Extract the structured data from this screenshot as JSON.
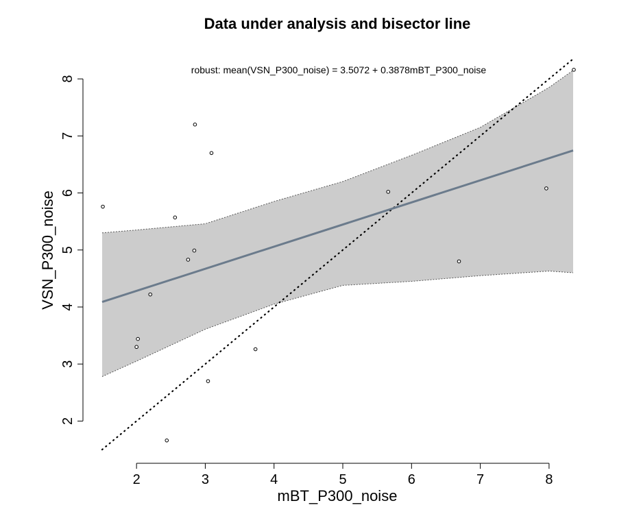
{
  "chart_data": {
    "type": "scatter",
    "title": "Data under analysis and bisector line",
    "subtitle": "robust: mean(VSN_P300_noise) = 3.5072 + 0.3878mBT_P300_noise",
    "xlabel": "mBT_P300_noise",
    "ylabel": "VSN_P300_noise",
    "xlim": [
      1.5,
      8.35
    ],
    "ylim": [
      1.5,
      8.35
    ],
    "x_ticks": [
      "2",
      "3",
      "4",
      "5",
      "6",
      "7",
      "8"
    ],
    "y_ticks": [
      "2",
      "3",
      "4",
      "5",
      "6",
      "7",
      "8"
    ],
    "grid": false,
    "points": [
      {
        "x": 1.51,
        "y": 5.76
      },
      {
        "x": 2.0,
        "y": 3.3
      },
      {
        "x": 2.02,
        "y": 3.44
      },
      {
        "x": 2.2,
        "y": 4.22
      },
      {
        "x": 2.44,
        "y": 1.66
      },
      {
        "x": 2.56,
        "y": 5.57
      },
      {
        "x": 2.75,
        "y": 4.83
      },
      {
        "x": 2.84,
        "y": 4.99
      },
      {
        "x": 2.85,
        "y": 7.2
      },
      {
        "x": 3.04,
        "y": 2.7
      },
      {
        "x": 3.09,
        "y": 6.7
      },
      {
        "x": 3.73,
        "y": 3.26
      },
      {
        "x": 5.66,
        "y": 6.02
      },
      {
        "x": 6.69,
        "y": 4.8
      },
      {
        "x": 7.96,
        "y": 6.08
      },
      {
        "x": 8.36,
        "y": 8.16
      }
    ],
    "fit_line": {
      "intercept": 3.5072,
      "slope": 0.3878,
      "color": "#6b7b8c"
    },
    "confidence_band": {
      "color": "#cccccc",
      "x": [
        1.5,
        2.0,
        3.0,
        4.0,
        5.0,
        6.0,
        7.0,
        8.0,
        8.35
      ],
      "upper": [
        5.3,
        5.35,
        5.46,
        5.85,
        6.2,
        6.66,
        7.15,
        7.85,
        8.15
      ],
      "lower": [
        2.78,
        3.05,
        3.61,
        4.05,
        4.38,
        4.45,
        4.55,
        4.63,
        4.6
      ]
    },
    "bisector": {
      "style": "dotted",
      "color": "#000000"
    }
  }
}
